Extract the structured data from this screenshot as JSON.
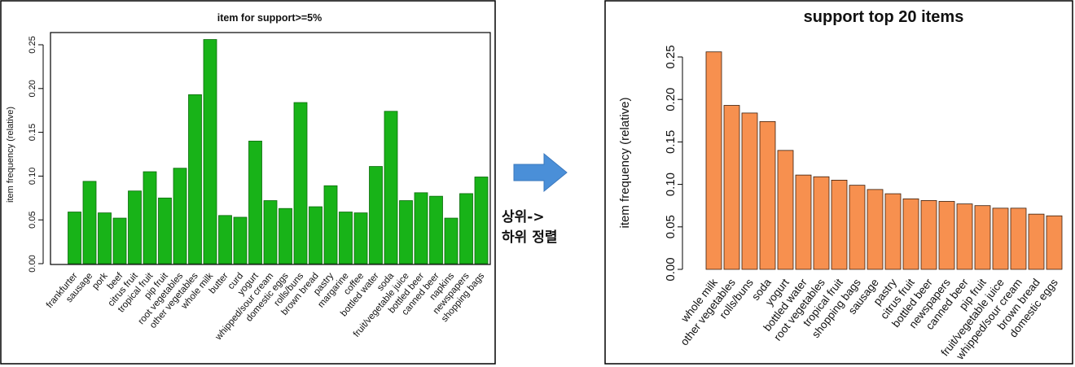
{
  "arrow_caption": {
    "line1": "상위->",
    "line2": "하위 정렬"
  },
  "colors": {
    "left_bars": "#18b318",
    "right_bars": "#f7904f",
    "arrow": "#4a8fd8",
    "frame": "#000000"
  },
  "chart_data": [
    {
      "type": "bar",
      "title": "item for support>=5%",
      "xlabel": "",
      "ylabel": "item frequency (relative)",
      "ylim": [
        0,
        0.25
      ],
      "yticks": [
        "0.00",
        "0.05",
        "0.10",
        "0.15",
        "0.20",
        "0.25"
      ],
      "grid": false,
      "categories": [
        "frankfurter",
        "sausage",
        "pork",
        "beef",
        "citrus fruit",
        "tropical fruit",
        "pip fruit",
        "root vegetables",
        "other vegetables",
        "whole milk",
        "butter",
        "curd",
        "yogurt",
        "whipped/sour cream",
        "domestic eggs",
        "rolls/buns",
        "brown bread",
        "pastry",
        "margarine",
        "coffee",
        "bottled water",
        "soda",
        "fruit/vegetable juice",
        "bottled beer",
        "canned beer",
        "napkins",
        "newspapers",
        "shopping bags"
      ],
      "values": [
        0.059,
        0.094,
        0.058,
        0.052,
        0.083,
        0.105,
        0.075,
        0.109,
        0.193,
        0.256,
        0.055,
        0.053,
        0.14,
        0.072,
        0.063,
        0.184,
        0.065,
        0.089,
        0.059,
        0.058,
        0.111,
        0.174,
        0.072,
        0.081,
        0.077,
        0.052,
        0.08,
        0.099
      ]
    },
    {
      "type": "bar",
      "title": "support top 20 items",
      "xlabel": "",
      "ylabel": "item frequency (relative)",
      "ylim": [
        0,
        0.25
      ],
      "yticks": [
        "0.00",
        "0.05",
        "0.10",
        "0.15",
        "0.20",
        "0.25"
      ],
      "grid": false,
      "categories": [
        "whole milk",
        "other vegetables",
        "rolls/buns",
        "soda",
        "yogurt",
        "bottled water",
        "root vegetables",
        "tropical fruit",
        "shopping bags",
        "sausage",
        "pastry",
        "citrus fruit",
        "bottled beer",
        "newspapers",
        "canned beer",
        "pip fruit",
        "fruit/vegetable juice",
        "whipped/sour cream",
        "brown bread",
        "domestic eggs"
      ],
      "values": [
        0.256,
        0.193,
        0.184,
        0.174,
        0.14,
        0.111,
        0.109,
        0.105,
        0.099,
        0.094,
        0.089,
        0.083,
        0.081,
        0.08,
        0.077,
        0.075,
        0.072,
        0.072,
        0.065,
        0.063
      ]
    }
  ]
}
